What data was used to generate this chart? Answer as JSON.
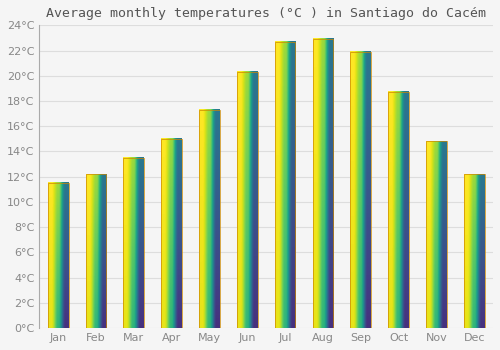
{
  "title": "Average monthly temperatures (°C ) in Santiago do Cacém",
  "months": [
    "Jan",
    "Feb",
    "Mar",
    "Apr",
    "May",
    "Jun",
    "Jul",
    "Aug",
    "Sep",
    "Oct",
    "Nov",
    "Dec"
  ],
  "temperatures": [
    11.5,
    12.2,
    13.5,
    15.0,
    17.3,
    20.3,
    22.7,
    22.9,
    21.9,
    18.7,
    14.8,
    12.2
  ],
  "bar_color_bottom": "#F5A623",
  "bar_color_top": "#FFD966",
  "bar_edge_color": "#CC8800",
  "ylim": [
    0,
    24
  ],
  "ytick_step": 2,
  "background_color": "#f5f5f5",
  "plot_bg_color": "#f5f5f5",
  "grid_color": "#dddddd",
  "tick_label_color": "#888888",
  "title_color": "#555555",
  "title_fontsize": 9.5,
  "tick_fontsize": 8,
  "bar_width": 0.55
}
